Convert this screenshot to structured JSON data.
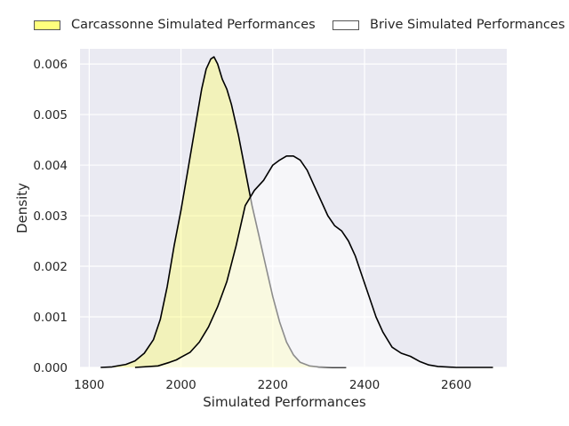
{
  "chart_data": {
    "type": "area",
    "title": "",
    "xlabel": "Simulated Performances",
    "ylabel": "Density",
    "xlim": [
      1780,
      2710
    ],
    "ylim": [
      0,
      0.0063
    ],
    "xticks": [
      "1800",
      "2000",
      "2200",
      "2400",
      "2600"
    ],
    "yticks": [
      "0.000",
      "0.001",
      "0.002",
      "0.003",
      "0.004",
      "0.005",
      "0.006"
    ],
    "grid": true,
    "legend_position": "top",
    "series": [
      {
        "name": "Carcassonne Simulated Performances",
        "fill": "#ffff66",
        "fill_opacity": 0.4,
        "line": "#000000",
        "x": [
          1825,
          1850,
          1880,
          1900,
          1920,
          1940,
          1955,
          1970,
          1985,
          2000,
          2015,
          2030,
          2045,
          2055,
          2065,
          2072,
          2080,
          2090,
          2100,
          2110,
          2125,
          2140,
          2155,
          2170,
          2185,
          2200,
          2215,
          2230,
          2245,
          2260,
          2280,
          2300,
          2330,
          2360
        ],
        "y": [
          0.0,
          1e-05,
          6e-05,
          0.00013,
          0.00028,
          0.00055,
          0.00095,
          0.0016,
          0.0024,
          0.0031,
          0.0039,
          0.0047,
          0.0055,
          0.0059,
          0.0061,
          0.00614,
          0.006,
          0.0057,
          0.0055,
          0.0052,
          0.0046,
          0.0039,
          0.0032,
          0.0026,
          0.002,
          0.0014,
          0.0009,
          0.0005,
          0.00025,
          0.0001,
          3e-05,
          1e-05,
          0.0,
          0.0
        ]
      },
      {
        "name": "Brive Simulated Performances",
        "fill": "#ffffff",
        "fill_opacity": 0.55,
        "line": "#000000",
        "x": [
          1900,
          1950,
          1975,
          1990,
          2000,
          2020,
          2040,
          2060,
          2080,
          2100,
          2120,
          2140,
          2160,
          2180,
          2200,
          2215,
          2230,
          2245,
          2260,
          2275,
          2290,
          2305,
          2320,
          2335,
          2350,
          2365,
          2380,
          2395,
          2410,
          2425,
          2440,
          2460,
          2480,
          2500,
          2520,
          2540,
          2560,
          2600,
          2640,
          2680
        ],
        "y": [
          0.0,
          3e-05,
          0.0001,
          0.00015,
          0.0002,
          0.0003,
          0.0005,
          0.0008,
          0.0012,
          0.0017,
          0.0024,
          0.0032,
          0.0035,
          0.0037,
          0.004,
          0.0041,
          0.00418,
          0.00418,
          0.0041,
          0.0039,
          0.0036,
          0.0033,
          0.003,
          0.0028,
          0.0027,
          0.0025,
          0.0022,
          0.0018,
          0.0014,
          0.001,
          0.0007,
          0.0004,
          0.00028,
          0.00022,
          0.00012,
          5e-05,
          2e-05,
          0.0,
          0.0,
          0.0
        ]
      }
    ]
  }
}
